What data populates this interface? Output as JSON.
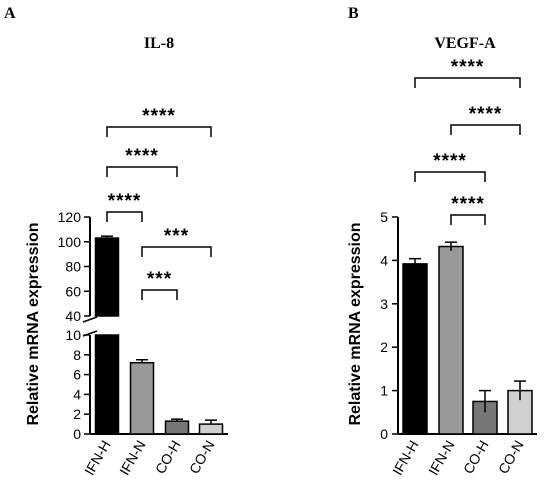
{
  "chart_data": [
    {
      "panel": "A",
      "title": "IL-8",
      "type": "bar",
      "ylabel": "Relative mRNA expression",
      "categories": [
        "IFN-H",
        "IFN-N",
        "CO-H",
        "CO-N"
      ],
      "values": [
        103,
        7.2,
        1.3,
        1.0
      ],
      "errors": [
        1.5,
        0.3,
        0.2,
        0.4
      ],
      "bar_colors": [
        "#000000",
        "#999999",
        "#777777",
        "#d0d0d0"
      ],
      "axis_break": {
        "lower_range": [
          0,
          10
        ],
        "upper_range": [
          40,
          120
        ]
      },
      "yticks_lower": [
        "0",
        "2",
        "4",
        "6",
        "8",
        "10"
      ],
      "yticks_upper": [
        "40",
        "60",
        "80",
        "100",
        "120"
      ],
      "significance": [
        {
          "from": 0,
          "to": 1,
          "label": "****"
        },
        {
          "from": 0,
          "to": 2,
          "label": "****"
        },
        {
          "from": 0,
          "to": 3,
          "label": "****"
        },
        {
          "from": 1,
          "to": 2,
          "label": "***"
        },
        {
          "from": 1,
          "to": 3,
          "label": "***"
        }
      ]
    },
    {
      "panel": "B",
      "title": "VEGF-A",
      "type": "bar",
      "ylabel": "Relative mRNA expression",
      "categories": [
        "IFN-H",
        "IFN-N",
        "CO-H",
        "CO-N"
      ],
      "values": [
        3.92,
        4.32,
        0.75,
        1.0
      ],
      "errors": [
        0.12,
        0.1,
        0.25,
        0.22
      ],
      "bar_colors": [
        "#000000",
        "#999999",
        "#777777",
        "#d0d0d0"
      ],
      "ylim": [
        0,
        5
      ],
      "yticks": [
        "0",
        "1",
        "2",
        "3",
        "4",
        "5"
      ],
      "significance": [
        {
          "from": 0,
          "to": 2,
          "label": "****"
        },
        {
          "from": 0,
          "to": 3,
          "label": "****"
        },
        {
          "from": 1,
          "to": 2,
          "label": "****"
        },
        {
          "from": 1,
          "to": 3,
          "label": "****"
        }
      ]
    }
  ]
}
